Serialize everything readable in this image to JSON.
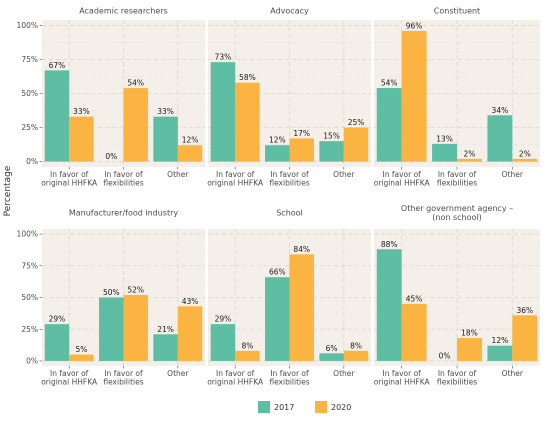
{
  "chart_data": {
    "type": "bar",
    "ylabel": "Percentage",
    "ylim": [
      0,
      100
    ],
    "y_ticks": [
      0,
      25,
      50,
      75,
      100
    ],
    "y_tick_labels": [
      "0%",
      "25%",
      "50%",
      "75%",
      "100%"
    ],
    "grid": true,
    "legend_position": "bottom",
    "legend": [
      {
        "name": "2017",
        "color": "#5dbea3"
      },
      {
        "name": "2020",
        "color": "#fbb442"
      }
    ],
    "categories": [
      "In favor of\noriginal HHFKA",
      "In favor of\nflexibilities",
      "Other"
    ],
    "panels": [
      {
        "title": "Academic researchers",
        "series": [
          {
            "name": "2017",
            "values": [
              67,
              0,
              33
            ]
          },
          {
            "name": "2020",
            "values": [
              33,
              54,
              12
            ]
          }
        ]
      },
      {
        "title": "Advocacy",
        "series": [
          {
            "name": "2017",
            "values": [
              73,
              12,
              15
            ]
          },
          {
            "name": "2020",
            "values": [
              58,
              17,
              25
            ]
          }
        ]
      },
      {
        "title": "Constituent",
        "series": [
          {
            "name": "2017",
            "values": [
              54,
              13,
              34
            ]
          },
          {
            "name": "2020",
            "values": [
              96,
              2,
              2
            ]
          }
        ]
      },
      {
        "title": "Manufacturer/food industry",
        "series": [
          {
            "name": "2017",
            "values": [
              29,
              50,
              21
            ]
          },
          {
            "name": "2020",
            "values": [
              5,
              52,
              43
            ]
          }
        ]
      },
      {
        "title": "School",
        "series": [
          {
            "name": "2017",
            "values": [
              29,
              66,
              6
            ]
          },
          {
            "name": "2020",
            "values": [
              8,
              84,
              8
            ]
          }
        ]
      },
      {
        "title": "Other government agency –\n(non school)",
        "series": [
          {
            "name": "2017",
            "values": [
              88,
              0,
              12
            ]
          },
          {
            "name": "2020",
            "values": [
              45,
              18,
              36
            ]
          }
        ]
      }
    ]
  }
}
